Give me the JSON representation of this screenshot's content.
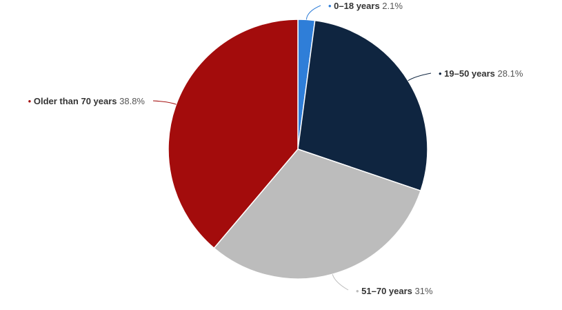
{
  "chart_data": {
    "type": "pie",
    "title": "",
    "series": [
      {
        "name": "",
        "slices": [
          {
            "label": "0–18 years",
            "value": 2.1,
            "value_label": "2.1%",
            "color": "#2f7ed8"
          },
          {
            "label": "19–50 years",
            "value": 28.1,
            "value_label": "28.1%",
            "color": "#0f2540"
          },
          {
            "label": "51–70 years",
            "value": 31,
            "value_label": "31%",
            "color": "#bcbcbc"
          },
          {
            "label": "Older than 70 years",
            "value": 38.8,
            "value_label": "38.8%",
            "color": "#a30c0c"
          }
        ]
      }
    ],
    "start_angle_deg": 0,
    "direction": "clockwise",
    "legend": "none",
    "data_labels": "outside-with-connectors"
  }
}
